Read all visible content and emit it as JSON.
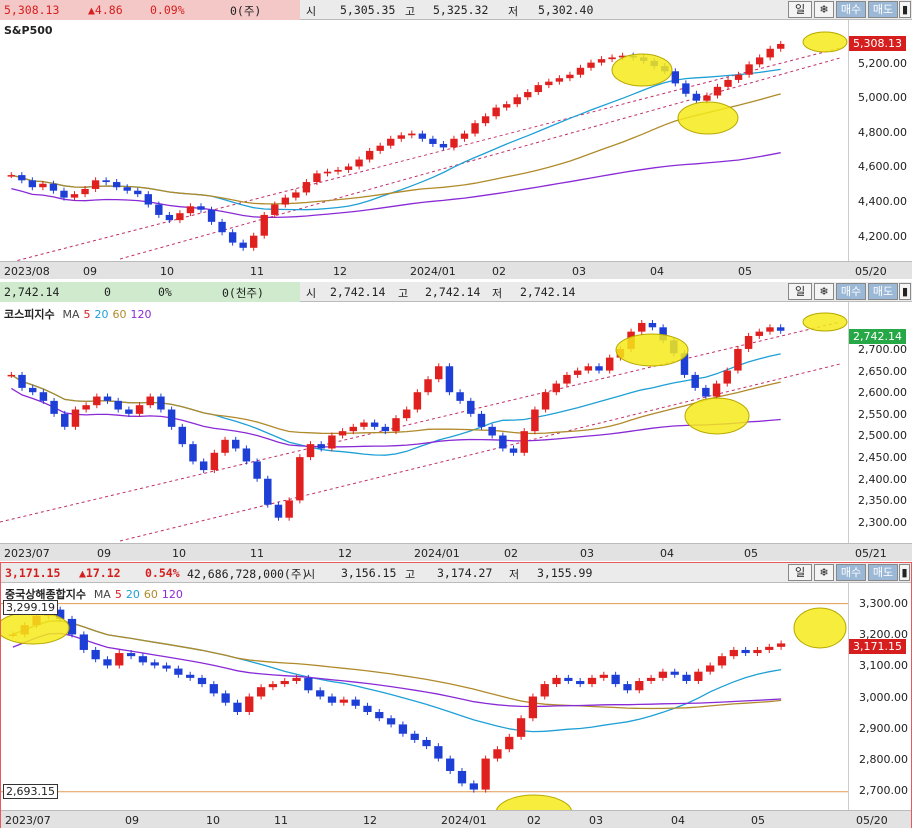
{
  "panels": [
    {
      "id": "sp500",
      "header": {
        "last": "5,308.13",
        "change": "▲4.86",
        "pct": "0.09%",
        "volume": "0(주)",
        "open_lbl": "시",
        "open": "5,305.35",
        "high_lbl": "고",
        "high": "5,325.32",
        "low_lbl": "저",
        "low": "5,302.40",
        "bg": "#f5c8c8",
        "color": "#d61e1e"
      },
      "title": "S&P500",
      "ma_legend": [],
      "current_label": "5,308.13",
      "current_color": "red",
      "y_ticks": [
        "5,200.00",
        "5,000.00",
        "4,800.00",
        "4,600.00",
        "4,400.00",
        "4,200.00"
      ],
      "x_ticks": [
        "2023/08",
        "09",
        "10",
        "11",
        "12",
        "2024/01",
        "02",
        "03",
        "04",
        "05",
        "05/20"
      ],
      "buttons": [
        "일",
        "❄",
        "매수",
        "매도",
        "▮"
      ],
      "chart_data": {
        "type": "candlestick",
        "ylim": [
          4100,
          5400
        ],
        "close_series": [
          4550,
          4520,
          4480,
          4500,
          4460,
          4420,
          4440,
          4470,
          4520,
          4510,
          4480,
          4460,
          4440,
          4380,
          4320,
          4290,
          4330,
          4370,
          4350,
          4280,
          4220,
          4160,
          4130,
          4200,
          4320,
          4380,
          4420,
          4450,
          4510,
          4560,
          4570,
          4580,
          4600,
          4640,
          4690,
          4720,
          4760,
          4780,
          4790,
          4760,
          4730,
          4710,
          4760,
          4790,
          4850,
          4890,
          4940,
          4960,
          5000,
          5030,
          5070,
          5090,
          5110,
          5130,
          5170,
          5200,
          5220,
          5230,
          5240,
          5230,
          5210,
          5180,
          5150,
          5080,
          5020,
          4980,
          5010,
          5060,
          5100,
          5130,
          5190,
          5230,
          5280,
          5308
        ],
        "ma_lines": [
          "MA20",
          "MA60",
          "MA120"
        ]
      }
    },
    {
      "id": "kospi",
      "header": {
        "last": "2,742.14",
        "change": "0",
        "pct": "0%",
        "volume": "0(천주)",
        "open_lbl": "시",
        "open": "2,742.14",
        "high_lbl": "고",
        "high": "2,742.14",
        "low_lbl": "저",
        "low": "2,742.14",
        "bg": "#cfeacc",
        "color": "#222"
      },
      "title": "코스피지수",
      "ma_legend": [
        {
          "label": "MA",
          "color": "#444"
        },
        {
          "label": "5",
          "color": "#d61e1e"
        },
        {
          "label": "20",
          "color": "#1ea0d6"
        },
        {
          "label": "60",
          "color": "#b08a2a"
        },
        {
          "label": "120",
          "color": "#8a2ad6"
        }
      ],
      "current_label": "2,742.14",
      "current_color": "green",
      "y_ticks": [
        "2,700.00",
        "2,650.00",
        "2,600.00",
        "2,550.00",
        "2,500.00",
        "2,450.00",
        "2,400.00",
        "2,350.00",
        "2,300.00"
      ],
      "x_ticks": [
        "2023/07",
        "09",
        "10",
        "11",
        "12",
        "2024/01",
        "02",
        "03",
        "04",
        "05",
        "05/21"
      ],
      "buttons": [
        "일",
        "❄",
        "매수",
        "매도",
        "▮"
      ],
      "chart_data": {
        "type": "candlestick",
        "ylim": [
          2270,
          2790
        ],
        "close_series": [
          2640,
          2610,
          2600,
          2580,
          2550,
          2520,
          2560,
          2570,
          2590,
          2580,
          2560,
          2550,
          2570,
          2590,
          2560,
          2520,
          2480,
          2440,
          2420,
          2460,
          2490,
          2470,
          2440,
          2400,
          2340,
          2310,
          2350,
          2450,
          2480,
          2470,
          2500,
          2510,
          2520,
          2530,
          2520,
          2510,
          2540,
          2560,
          2600,
          2630,
          2660,
          2600,
          2580,
          2550,
          2520,
          2500,
          2470,
          2460,
          2510,
          2560,
          2600,
          2620,
          2640,
          2650,
          2660,
          2650,
          2680,
          2700,
          2740,
          2760,
          2750,
          2720,
          2690,
          2640,
          2610,
          2590,
          2620,
          2650,
          2700,
          2730,
          2740,
          2750,
          2742
        ],
        "ma_lines": [
          "MA20",
          "MA60",
          "MA120"
        ]
      }
    },
    {
      "id": "shanghai",
      "header": {
        "last": "3,171.15",
        "change": "▲17.12",
        "pct": "0.54%",
        "volume": "42,686,728,000(주)",
        "open_lbl": "시",
        "open": "3,156.15",
        "high_lbl": "고",
        "high": "3,174.27",
        "low_lbl": "저",
        "low": "3,155.99",
        "bg": "#ebebeb",
        "color": "#d61e1e"
      },
      "title": "중국상해종합지수",
      "ma_legend": [
        {
          "label": "MA",
          "color": "#444"
        },
        {
          "label": "5",
          "color": "#d61e1e"
        },
        {
          "label": "20",
          "color": "#1ea0d6"
        },
        {
          "label": "60",
          "color": "#b08a2a"
        },
        {
          "label": "120",
          "color": "#8a2ad6"
        }
      ],
      "current_label": "3,171.15",
      "current_color": "red",
      "level_high": "3,299.19",
      "level_low": "2,693.15",
      "y_ticks": [
        "3,300.00",
        "3,200.00",
        "3,100.00",
        "3,000.00",
        "2,900.00",
        "2,800.00",
        "2,700.00"
      ],
      "x_ticks": [
        "2023/07",
        "09",
        "10",
        "11",
        "12",
        "2024/01",
        "02",
        "03",
        "04",
        "05",
        "05/20"
      ],
      "buttons": [
        "일",
        "❄",
        "매수",
        "매도",
        "▮"
      ],
      "chart_data": {
        "type": "candlestick",
        "ylim": [
          2660,
          3340
        ],
        "close_series": [
          3200,
          3230,
          3260,
          3280,
          3250,
          3200,
          3150,
          3120,
          3100,
          3140,
          3130,
          3110,
          3100,
          3090,
          3070,
          3060,
          3040,
          3010,
          2980,
          2950,
          3000,
          3030,
          3040,
          3050,
          3060,
          3020,
          3000,
          2980,
          2990,
          2970,
          2950,
          2930,
          2910,
          2880,
          2860,
          2840,
          2800,
          2760,
          2720,
          2700,
          2800,
          2830,
          2870,
          2930,
          3000,
          3040,
          3060,
          3050,
          3040,
          3060,
          3070,
          3040,
          3020,
          3050,
          3060,
          3080,
          3070,
          3050,
          3080,
          3100,
          3130,
          3150,
          3140,
          3150,
          3160,
          3171
        ],
        "ma_lines": [
          "MA20",
          "MA60",
          "MA120"
        ]
      }
    }
  ],
  "colors": {
    "up": "#e0201e",
    "down": "#1e3fd6",
    "ma20": "#1ea0d6",
    "ma60": "#b08a2a",
    "ma120": "#8a2ad6",
    "channel": "#c0306a",
    "highlight": "#f5ea1a"
  }
}
